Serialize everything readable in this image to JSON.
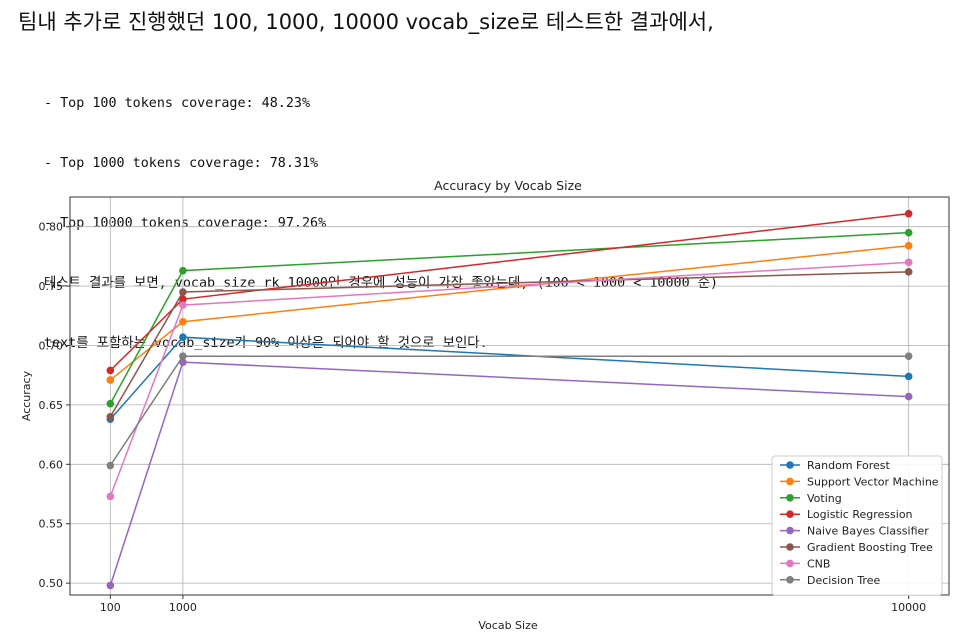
{
  "heading": "팀내 추가로 진행했던 100, 1000, 10000 vocab_size로 테스트한 결과에서,",
  "notes": [
    "- Top 100 tokens coverage: 48.23%",
    "- Top 1000 tokens coverage: 78.31%",
    "- Top 10000 tokens coverage: 97.26%",
    "테스트 결과를 보면, vocab_size rk 10000인 경우에 성능이 가장 좋았는데, (100 < 1000 < 10000 순)",
    "text를 포함하는 vocab_size가 90% 이상은 되어야 할 것으로 보인다."
  ],
  "chart_data": {
    "type": "line",
    "title": "Accuracy by Vocab Size",
    "xlabel": "Vocab Size",
    "ylabel": "Accuracy",
    "x": [
      100,
      1000,
      10000
    ],
    "xticks": [
      "100",
      "1000",
      "10000"
    ],
    "xlim": [
      -400,
      10500
    ],
    "ylim": [
      0.49,
      0.825
    ],
    "yticks": [
      0.5,
      0.55,
      0.6,
      0.65,
      0.7,
      0.75,
      0.8
    ],
    "ytick_labels": [
      "0.50",
      "0.55",
      "0.60",
      "0.65",
      "0.70",
      "0.75",
      "0.80"
    ],
    "grid": true,
    "legend_position": "lower right",
    "series": [
      {
        "name": "Random Forest",
        "color": "#1f77b4",
        "values": [
          0.638,
          0.707,
          0.674
        ]
      },
      {
        "name": "Support Vector Machine",
        "color": "#ff7f0e",
        "values": [
          0.671,
          0.72,
          0.784
        ]
      },
      {
        "name": "Voting",
        "color": "#2ca02c",
        "values": [
          0.651,
          0.763,
          0.795
        ]
      },
      {
        "name": "Logistic Regression",
        "color": "#d62728",
        "values": [
          0.679,
          0.739,
          0.811
        ]
      },
      {
        "name": "Naive Bayes Classifier",
        "color": "#9467bd",
        "values": [
          0.498,
          0.686,
          0.657
        ]
      },
      {
        "name": "Gradient Boosting Tree",
        "color": "#8c564b",
        "values": [
          0.64,
          0.745,
          0.762
        ]
      },
      {
        "name": "CNB",
        "color": "#e377c2",
        "values": [
          0.573,
          0.734,
          0.77
        ]
      },
      {
        "name": "Decision Tree",
        "color": "#7f7f7f",
        "values": [
          0.599,
          0.691,
          0.691
        ]
      }
    ]
  }
}
